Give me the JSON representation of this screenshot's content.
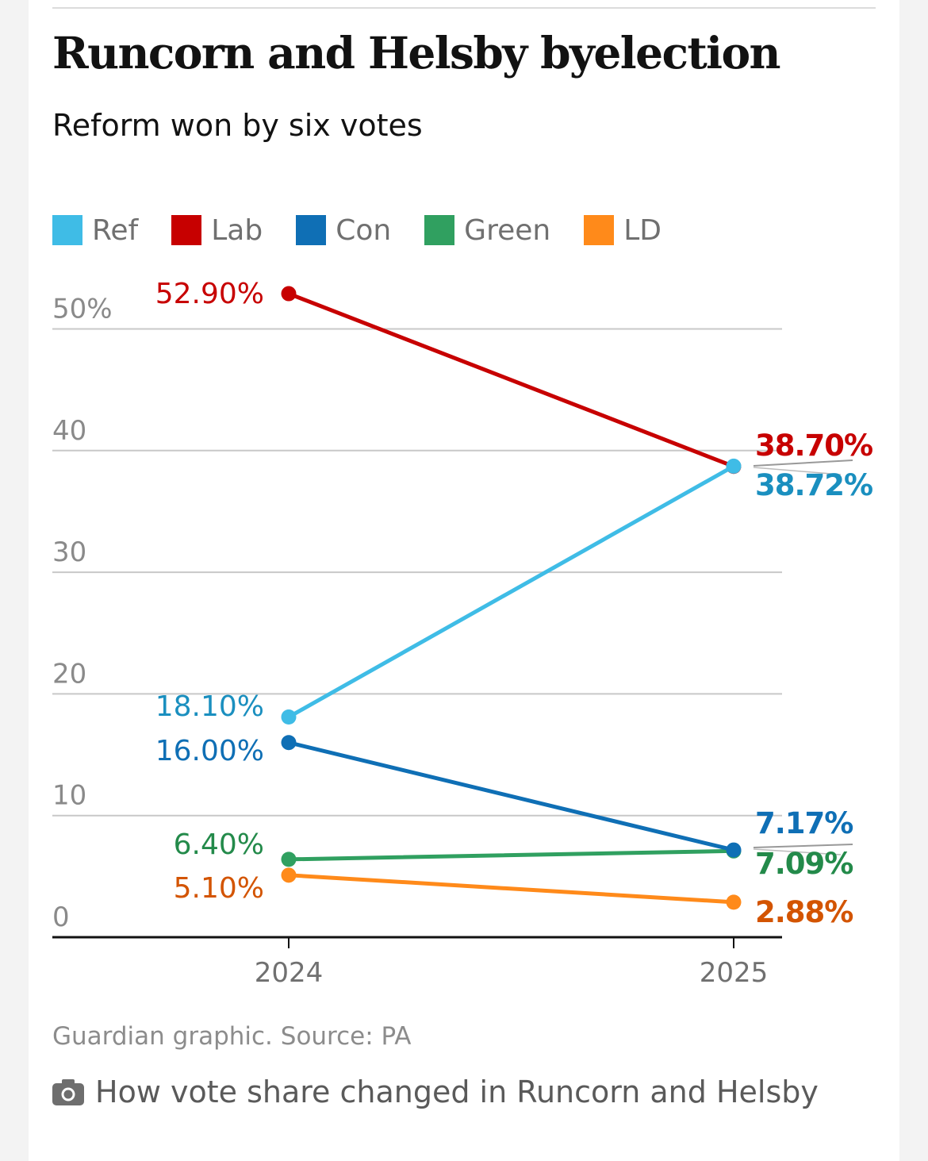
{
  "title": "Runcorn and Helsby byelection",
  "subtitle": "Reform won by six votes",
  "source": "Guardian graphic. Source: PA",
  "caption": "How vote share changed in Runcorn and Helsby",
  "caption_icon": "camera-icon",
  "chart_data": {
    "type": "line",
    "title": "Runcorn and Helsby byelection",
    "subtitle": "Reform won by six votes",
    "x": [
      "2024",
      "2025"
    ],
    "ylim": [
      0,
      50
    ],
    "yticks": [
      {
        "value": 0,
        "label": "0"
      },
      {
        "value": 10,
        "label": "10"
      },
      {
        "value": 20,
        "label": "20"
      },
      {
        "value": 30,
        "label": "30"
      },
      {
        "value": 40,
        "label": "40"
      },
      {
        "value": 50,
        "label": "50%"
      }
    ],
    "grid": true,
    "legend_position": "top-left",
    "series": [
      {
        "name": "Ref",
        "key": "ref",
        "color": "#3fbce6",
        "label_color": "#1a8fbf",
        "values": [
          18.1,
          38.72
        ],
        "labels": [
          "18.10%",
          "38.72%"
        ]
      },
      {
        "name": "Lab",
        "key": "lab",
        "color": "#c70000",
        "label_color": "#c70000",
        "values": [
          52.9,
          38.7
        ],
        "labels": [
          "52.90%",
          "38.70%"
        ]
      },
      {
        "name": "Con",
        "key": "con",
        "color": "#0f6fb5",
        "label_color": "#0f6fb5",
        "values": [
          16.0,
          7.17
        ],
        "labels": [
          "16.00%",
          "7.17%"
        ]
      },
      {
        "name": "Green",
        "key": "green",
        "color": "#30a060",
        "label_color": "#238a4a",
        "values": [
          6.4,
          7.09
        ],
        "labels": [
          "6.40%",
          "7.09%"
        ]
      },
      {
        "name": "LD",
        "key": "ld",
        "color": "#ff8a1a",
        "label_color": "#d35400",
        "values": [
          5.1,
          2.88
        ],
        "labels": [
          "5.10%",
          "2.88%"
        ]
      }
    ]
  }
}
